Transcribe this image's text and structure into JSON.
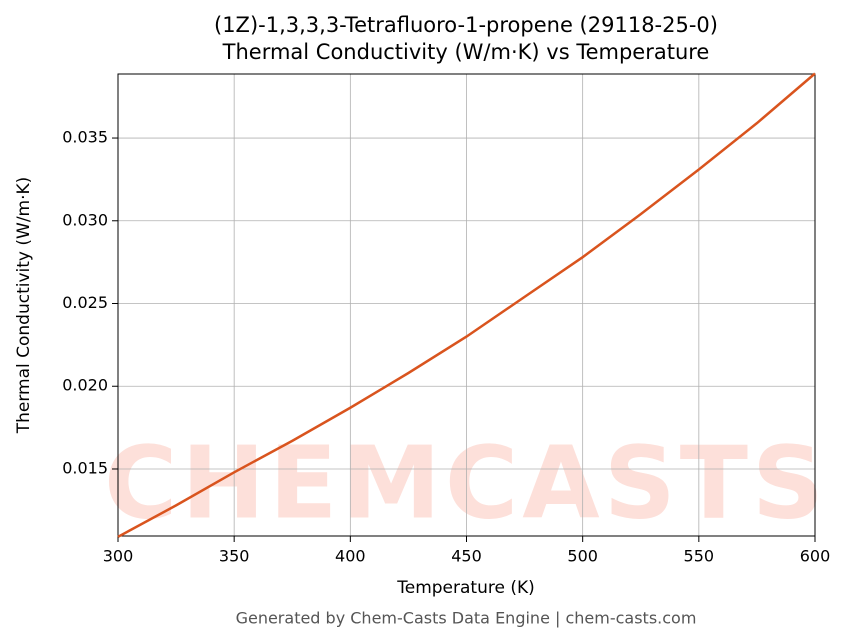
{
  "chart_data": {
    "type": "line",
    "title": "(1Z)-1,3,3,3-Tetrafluoro-1-propene (29118-25-0)",
    "subtitle": "Thermal Conductivity (W/m·K) vs Temperature",
    "x_label": "Temperature (K)",
    "y_label": "Thermal Conductivity (W/m·K)",
    "watermark": "CHEMCASTS",
    "footer": "Generated by Chem-Casts Data Engine | chem-casts.com",
    "x": [
      300,
      325,
      350,
      375,
      400,
      425,
      450,
      475,
      500,
      525,
      550,
      575,
      600
    ],
    "series": [
      {
        "name": "Thermal Conductivity",
        "color": "#d9541e",
        "values": [
          0.0109,
          0.0128,
          0.0148,
          0.0167,
          0.0187,
          0.0208,
          0.023,
          0.0254,
          0.0278,
          0.0304,
          0.0331,
          0.0359,
          0.0389
        ]
      }
    ],
    "xlim": [
      300,
      600
    ],
    "xticks": [
      300,
      350,
      400,
      450,
      500,
      550,
      600
    ],
    "ylim": [
      0.01095,
      0.03887
    ],
    "yticks": [
      0.015,
      {
        "value": 0.02,
        "label": "0.020"
      },
      0.025,
      {
        "value": 0.03,
        "label": "0.030"
      },
      0.035
    ],
    "grid": true
  }
}
